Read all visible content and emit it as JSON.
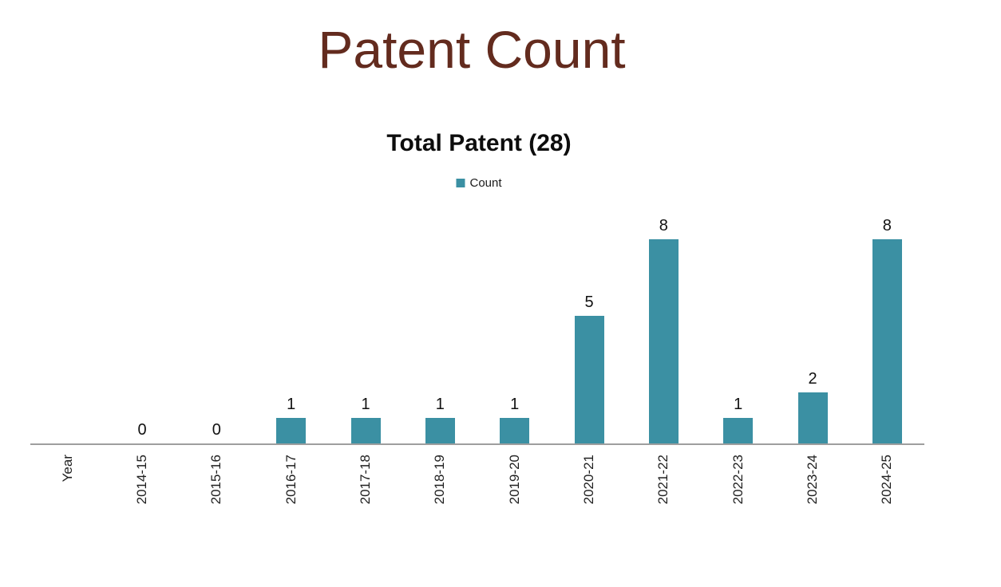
{
  "page": {
    "title": "Patent Count"
  },
  "chart": {
    "title": "Total Patent (28)",
    "legend": [
      {
        "label": "Count",
        "color": "#3b90a3"
      }
    ]
  },
  "chart_data": {
    "type": "bar",
    "title": "Total Patent (28)",
    "series_name": "Count",
    "categories": [
      "Year",
      "2014-15",
      "2015-16",
      "2016-17",
      "2017-18",
      "2018-19",
      "2019-20",
      "2020-21",
      "2021-22",
      "2022-23",
      "2023-24",
      "2024-25"
    ],
    "values": [
      null,
      0,
      0,
      1,
      1,
      1,
      1,
      5,
      8,
      1,
      2,
      8
    ],
    "total": 28,
    "data_labels": true,
    "ylim": [
      0,
      8
    ],
    "gridlines": false,
    "legend_position": "top",
    "x_tick_rotation": 90,
    "bar_color": "#3b90a3"
  },
  "colors": {
    "page_title": "#632b1e",
    "bar": "#3b90a3",
    "axis_line": "#9e9e9e",
    "label_text": "#111111",
    "background": "#ffffff"
  }
}
